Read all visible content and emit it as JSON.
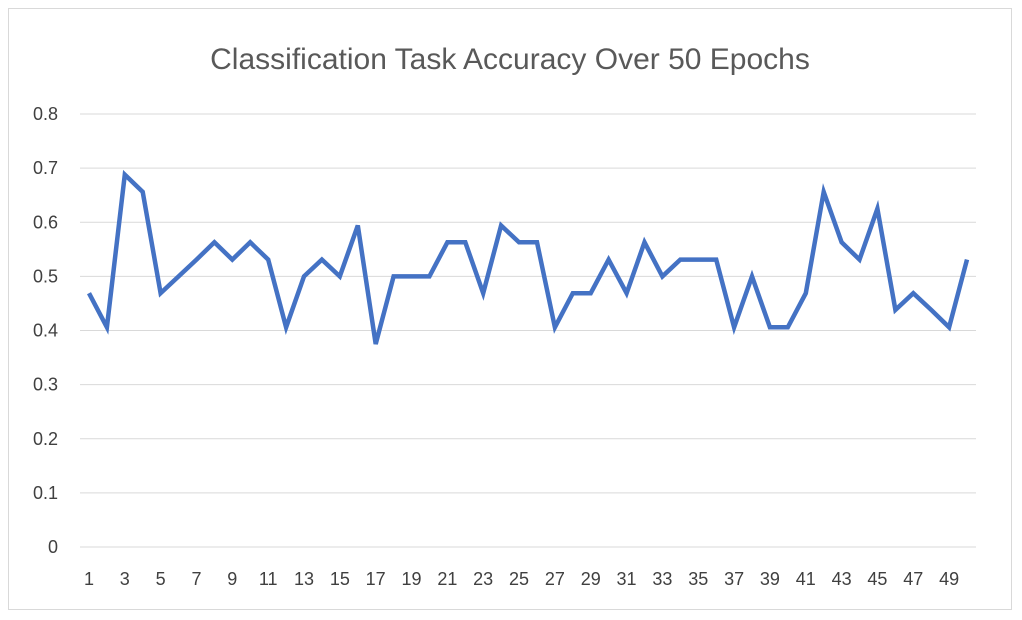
{
  "chart_data": {
    "type": "line",
    "title": "Classification Task Accuracy Over 50 Epochs",
    "xlabel": "",
    "ylabel": "",
    "x": [
      1,
      2,
      3,
      4,
      5,
      6,
      7,
      8,
      9,
      10,
      11,
      12,
      13,
      14,
      15,
      16,
      17,
      18,
      19,
      20,
      21,
      22,
      23,
      24,
      25,
      26,
      27,
      28,
      29,
      30,
      31,
      32,
      33,
      34,
      35,
      36,
      37,
      38,
      39,
      40,
      41,
      42,
      43,
      44,
      45,
      46,
      47,
      48,
      49,
      50
    ],
    "x_tick_labels": [
      "1",
      "3",
      "5",
      "7",
      "9",
      "11",
      "13",
      "15",
      "17",
      "19",
      "21",
      "23",
      "25",
      "27",
      "29",
      "31",
      "33",
      "35",
      "37",
      "39",
      "41",
      "43",
      "45",
      "47",
      "49"
    ],
    "series": [
      {
        "color": "#4472c4",
        "values": [
          0.469,
          0.406,
          0.688,
          0.656,
          0.469,
          0.5,
          0.531,
          0.563,
          0.531,
          0.563,
          0.531,
          0.406,
          0.5,
          0.531,
          0.5,
          0.594,
          0.375,
          0.5,
          0.5,
          0.5,
          0.563,
          0.563,
          0.469,
          0.594,
          0.563,
          0.563,
          0.406,
          0.469,
          0.469,
          0.531,
          0.469,
          0.563,
          0.5,
          0.531,
          0.531,
          0.531,
          0.406,
          0.5,
          0.406,
          0.406,
          0.469,
          0.656,
          0.563,
          0.531,
          0.625,
          0.438,
          0.469,
          0.438,
          0.406,
          0.531
        ]
      }
    ],
    "ylim": [
      0,
      0.8
    ],
    "y_ticks": [
      "0",
      "0.1",
      "0.2",
      "0.3",
      "0.4",
      "0.5",
      "0.6",
      "0.7",
      "0.8"
    ],
    "grid": "horizontal",
    "gridline_color": "#d9d9d9",
    "legend": "none"
  }
}
